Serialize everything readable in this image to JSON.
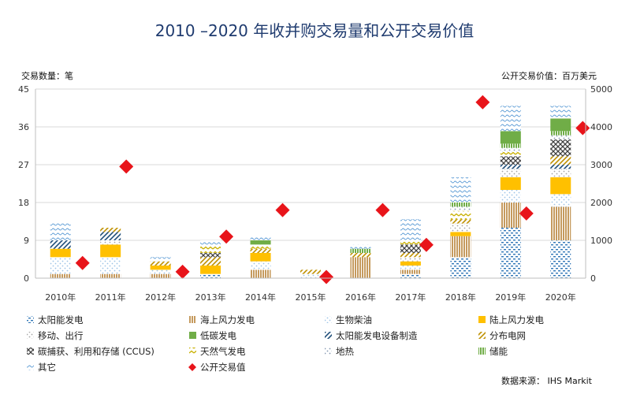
{
  "colors": {
    "title": "#1f3b6f",
    "diamond": "#e8141a",
    "太阳能发电": "#2e75b6",
    "海上风力发电": "#c59a5e",
    "生物柴油": "#9dc3e6",
    "陆上风力发电": "#ffc000",
    "移动、出行": "#a5a5a5",
    "太阳能发电设备制造": "#1f4e79",
    "分布电网": "#bf9000",
    "碳捕获、利用和存储 (CCUS)": "#404040",
    "天然气发电": "#c9b000",
    "地热": "#8497b0",
    "储能": "#70ad47",
    "低碳发电": "#70ad47",
    "其它": "#5b9bd5"
  },
  "chart_data": {
    "type": "bar",
    "title": "2010 –2020 年收并购交易量和公开交易价值",
    "ylabel": "交易数量：笔",
    "y2label": "公开交易价值：百万美元",
    "source": "数据来源： IHS Markit",
    "ylim": [
      0,
      45
    ],
    "yticks": [
      "0",
      "9",
      "18",
      "27",
      "36",
      "45"
    ],
    "y2lim": [
      0,
      5000
    ],
    "y2ticks": [
      "0",
      "1000",
      "2000",
      "3000",
      "4000",
      "5000"
    ],
    "categories": [
      "2010年",
      "2011年",
      "2012年",
      "2013年",
      "2014年",
      "2015年",
      "2016年",
      "2017年",
      "2018年",
      "2019年",
      "2020年"
    ],
    "series": [
      {
        "name": "太阳能发电",
        "pattern": "dash-blue",
        "values": [
          0,
          0,
          0,
          1,
          0,
          0,
          0,
          1,
          5,
          12,
          9
        ]
      },
      {
        "name": "海上风力发电",
        "pattern": "vstripe-tan",
        "values": [
          1,
          1,
          1,
          0,
          2,
          0,
          5,
          1,
          5,
          6,
          8
        ]
      },
      {
        "name": "生物柴油",
        "pattern": "dots-lightblue",
        "values": [
          4,
          4,
          1,
          0,
          2,
          1,
          0,
          1,
          0,
          3,
          3
        ]
      },
      {
        "name": "陆上风力发电",
        "pattern": "solid-yellow",
        "values": [
          2,
          3,
          1,
          2,
          2,
          0,
          0,
          1,
          1,
          3,
          4
        ]
      },
      {
        "name": "移动、出行",
        "pattern": "dots-grey",
        "values": [
          0,
          1,
          0,
          0,
          0,
          0,
          0,
          1,
          2,
          2,
          2
        ]
      },
      {
        "name": "太阳能发电设备制造",
        "pattern": "diag-navy",
        "values": [
          2,
          2,
          0,
          0,
          0,
          0,
          0,
          0,
          0,
          1,
          1
        ]
      },
      {
        "name": "分布电网",
        "pattern": "diag-gold",
        "values": [
          0,
          1,
          1,
          2,
          1,
          1,
          1,
          1,
          1,
          0,
          2
        ]
      },
      {
        "name": "碳捕获、利用和存储 (CCUS)",
        "pattern": "cross-dark",
        "values": [
          0,
          0,
          0,
          1,
          0,
          0,
          0,
          2,
          0,
          2,
          4
        ]
      },
      {
        "name": "天然气发电",
        "pattern": "chevron-yellow",
        "values": [
          0,
          0,
          0,
          2,
          1,
          0,
          0,
          1,
          2,
          1,
          0
        ]
      },
      {
        "name": "地热",
        "pattern": "dots-slate",
        "values": [
          0,
          0,
          0,
          0,
          0,
          0,
          0,
          0,
          1,
          1,
          1
        ]
      },
      {
        "name": "储能",
        "pattern": "vstripe-green",
        "values": [
          0,
          0,
          0,
          0,
          0,
          0,
          1,
          0,
          1,
          1,
          1
        ]
      },
      {
        "name": "低碳发电",
        "pattern": "solid-green",
        "values": [
          0,
          0,
          0,
          0,
          1,
          0,
          0,
          0,
          0,
          3,
          3
        ]
      },
      {
        "name": "其它",
        "pattern": "wave-blue",
        "values": [
          4,
          0,
          1,
          1,
          1,
          0,
          1,
          5,
          6,
          6,
          3
        ]
      }
    ],
    "line_series": {
      "name": "公开交易值",
      "marker": "diamond",
      "values": [
        400,
        2950,
        170,
        1100,
        1800,
        30,
        1800,
        880,
        4650,
        1710,
        3970
      ]
    }
  },
  "legend_items": [
    "太阳能发电",
    "海上风力发电",
    "生物柴油",
    "陆上风力发电",
    "移动、出行",
    "太阳能发电设备制造",
    "分布电网",
    "碳捕获、利用和存储 (CCUS)",
    "天然气发电",
    "地热",
    "储能",
    "其它",
    "公开交易值",
    "低碳发电"
  ]
}
